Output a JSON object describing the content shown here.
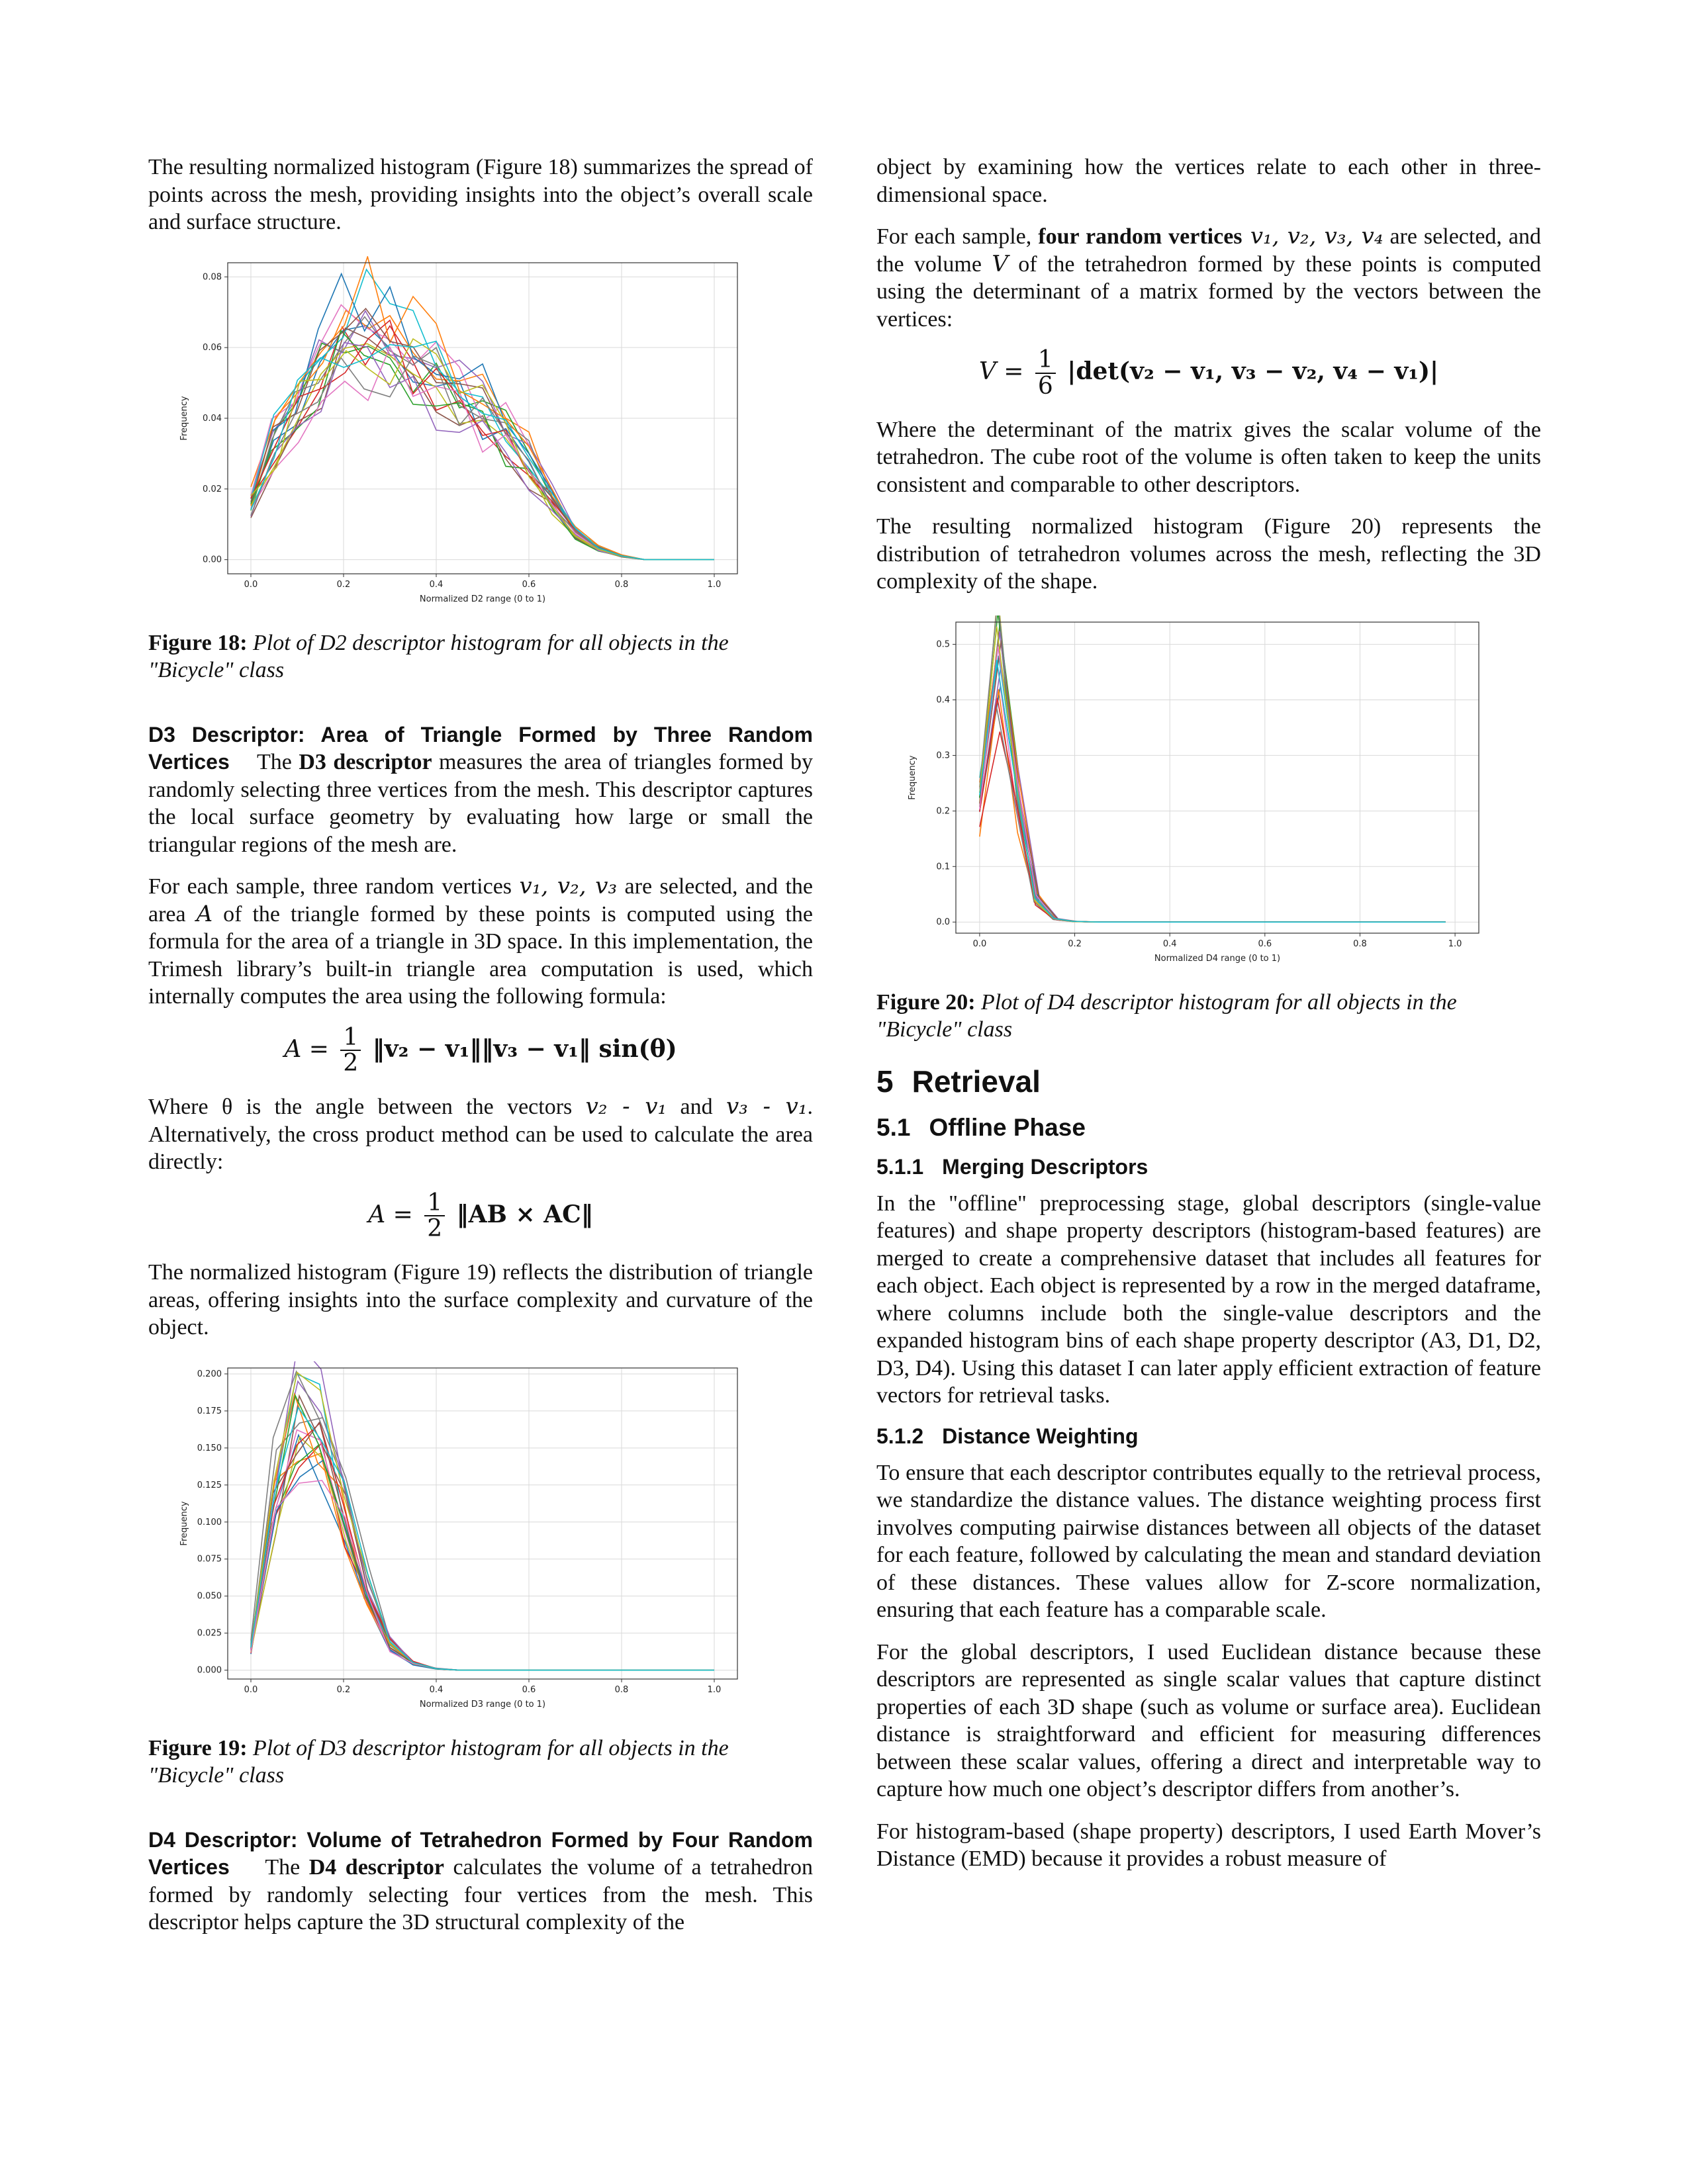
{
  "left": {
    "p_intro": "The resulting normalized histogram (Figure 18) summarizes the spread of points across the mesh, providing insights into the object’s overall scale and surface structure.",
    "fig18_label": "Figure 18:",
    "fig18_text": "Plot of D2 descriptor histogram for all objects in the \"Bicycle\" class",
    "d3_heading": "D3 Descriptor: Area of Triangle Formed by Three Random Vertices",
    "d3_p1_pre": "The ",
    "d3_p1_bold": "D3 descriptor",
    "d3_p1_post": " measures the area of triangles formed by randomly selecting three vertices from the mesh. This descriptor captures the local surface geometry by evaluating how large or small the triangular regions of the mesh are.",
    "d3_p2_a": "For each sample, three random vertices ",
    "d3_p2_vars": "v₁, v₂, v₃",
    "d3_p2_b": " are selected, and the area ",
    "d3_p2_A": "A",
    "d3_p2_c": " of the triangle formed by these points is computed using the formula for the area of a triangle in 3D space. In this implementation, the Trimesh library’s built-in triangle area computation is used, which internally computes the area using the following formula:",
    "eq1_lhs": "A =",
    "eq1_num": "1",
    "eq1_den": "2",
    "eq1_rhs": "‖v₂ − v₁‖‖v₃ − v₁‖ sin(θ)",
    "d3_p3_a": "Where θ is the angle between the vectors ",
    "d3_p3_v1": "v₂ - v₁",
    "d3_p3_b": " and ",
    "d3_p3_v2": "v₃ - v₁",
    "d3_p3_c": ". Alternatively, the cross product method can be used to calculate the area directly:",
    "eq2_lhs": "A =",
    "eq2_num": "1",
    "eq2_den": "2",
    "eq2_rhs": "‖AB × AC‖",
    "d3_p4": "The normalized histogram (Figure 19) reflects the distribution of triangle areas, offering insights into the surface complexity and curvature of the object.",
    "fig19_label": "Figure 19:",
    "fig19_text": "Plot of D3 descriptor histogram for all objects in the \"Bicycle\" class",
    "d4_heading": "D4 Descriptor: Volume of Tetrahedron Formed by Four Random Vertices",
    "d4_p1_pre": "The ",
    "d4_p1_bold": "D4 descriptor",
    "d4_p1_post": " calculates the volume of a tetrahedron formed by randomly selecting four vertices from the mesh. This descriptor helps capture the 3D structural complexity of the"
  },
  "right": {
    "p_cont": "object by examining how the vertices relate to each other in three-dimensional space.",
    "p_sample_a": "For each sample, ",
    "p_sample_bold": "four random vertices",
    "p_sample_vars": " v₁, v₂, v₃, v₄",
    "p_sample_b": " are selected, and the volume ",
    "p_sample_V": "V",
    "p_sample_c": " of the tetrahedron formed by these points is computed using the determinant of a matrix formed by the vectors between the vertices:",
    "eq3_lhs": "V =",
    "eq3_num": "1",
    "eq3_den": "6",
    "eq3_rhs": "|det(v₂ − v₁, v₃ − v₂, v₄ − v₁)|",
    "p_det": "Where the determinant of the matrix gives the scalar volume of the tetrahedron. The cube root of the volume is often taken to keep the units consistent and comparable to other descriptors.",
    "p_fig20": "The resulting normalized histogram (Figure 20) represents the distribution of tetrahedron volumes across the mesh, reflecting the 3D complexity of the shape.",
    "fig20_label": "Figure 20:",
    "fig20_text": "Plot of D4 descriptor histogram for all objects in the \"Bicycle\" class",
    "sec5_num": "5",
    "sec5_title": "Retrieval",
    "sec51_num": "5.1",
    "sec51_title": "Offline Phase",
    "sec511_num": "5.1.1",
    "sec511_title": "Merging Descriptors",
    "p_merge": "In the \"offline\" preprocessing stage, global descriptors (single-value features) and shape property descriptors (histogram-based features) are merged to create a comprehensive dataset that includes all features for each object. Each object is represented by a row in the merged dataframe, where columns include both the single-value descriptors and the expanded histogram bins of each shape property descriptor (A3, D1, D2, D3, D4). Using this dataset I can later apply efficient extraction of feature vectors for retrieval tasks.",
    "sec512_num": "5.1.2",
    "sec512_title": "Distance Weighting",
    "p_dist1": "To ensure that each descriptor contributes equally to the retrieval process, we standardize the distance values. The distance weighting process first involves computing pairwise distances between all objects of the dataset for each feature, followed by calculating the mean and standard deviation of these distances. These values allow for Z-score normalization, ensuring that each feature has a comparable scale.",
    "p_dist2": "For the global descriptors, I used Euclidean distance because these descriptors are represented as single scalar values that capture distinct properties of each 3D shape (such as volume or surface area). Euclidean distance is straightforward and efficient for measuring differences between these scalar values, offering a direct and interpretable way to capture how much one object’s descriptor differs from another’s.",
    "p_dist3": "For histogram-based (shape property) descriptors, I used Earth Mover’s Distance (EMD) because it provides a robust measure of"
  },
  "chart_data": [
    {
      "id": "fig18",
      "type": "line",
      "xlabel": "Normalized D2 range (0 to 1)",
      "ylabel": "Frequency",
      "xlim": [
        -0.05,
        1.05
      ],
      "ylim": [
        -0.004,
        0.084
      ],
      "xticks": [
        "0.0",
        "0.2",
        "0.4",
        "0.6",
        "0.8",
        "1.0"
      ],
      "yticks": [
        "0.00",
        "0.02",
        "0.04",
        "0.06",
        "0.08"
      ],
      "ytick_values": [
        0,
        0.02,
        0.04,
        0.06,
        0.08
      ],
      "grid": true,
      "x": [
        0,
        0.05,
        0.1,
        0.15,
        0.2,
        0.25,
        0.3,
        0.35,
        0.4,
        0.45,
        0.5,
        0.55,
        0.6,
        0.65,
        0.7,
        0.75,
        0.8,
        0.85,
        0.9,
        0.95,
        1.0
      ],
      "base": [
        0.016,
        0.032,
        0.045,
        0.056,
        0.063,
        0.064,
        0.061,
        0.056,
        0.052,
        0.048,
        0.043,
        0.036,
        0.027,
        0.018,
        0.008,
        0.003,
        0.001,
        0.0,
        0.0,
        0.0,
        0.0
      ],
      "series_count": 20
    },
    {
      "id": "fig19",
      "type": "line",
      "xlabel": "Normalized D3 range (0 to 1)",
      "ylabel": "Frequency",
      "xlim": [
        -0.05,
        1.05
      ],
      "ylim": [
        -0.006,
        0.204
      ],
      "xticks": [
        "0.0",
        "0.2",
        "0.4",
        "0.6",
        "0.8",
        "1.0"
      ],
      "yticks": [
        "0.000",
        "0.025",
        "0.050",
        "0.075",
        "0.100",
        "0.125",
        "0.150",
        "0.175",
        "0.200"
      ],
      "ytick_values": [
        0,
        0.025,
        0.05,
        0.075,
        0.1,
        0.125,
        0.15,
        0.175,
        0.2
      ],
      "grid": true,
      "x": [
        0,
        0.05,
        0.1,
        0.15,
        0.2,
        0.25,
        0.3,
        0.35,
        0.4,
        0.45,
        0.5,
        0.55,
        0.6,
        0.65,
        0.7,
        0.75,
        0.8,
        0.85,
        0.9,
        0.95,
        1.0
      ],
      "base": [
        0.015,
        0.12,
        0.17,
        0.155,
        0.11,
        0.055,
        0.018,
        0.005,
        0.001,
        0.0,
        0.0,
        0.0,
        0.0,
        0.0,
        0.0,
        0.0,
        0.0,
        0.0,
        0.0,
        0.0,
        0.0
      ],
      "series_count": 20
    },
    {
      "id": "fig20",
      "type": "line",
      "xlabel": "Normalized D4 range (0 to 1)",
      "ylabel": "Frequency",
      "xlim": [
        -0.05,
        1.05
      ],
      "ylim": [
        -0.02,
        0.54
      ],
      "xticks": [
        "0.0",
        "0.2",
        "0.4",
        "0.6",
        "0.8",
        "1.0"
      ],
      "yticks": [
        "0.0",
        "0.1",
        "0.2",
        "0.3",
        "0.4",
        "0.5"
      ],
      "ytick_values": [
        0,
        0.1,
        0.2,
        0.3,
        0.4,
        0.5
      ],
      "grid": true,
      "x": [
        0,
        0.04,
        0.08,
        0.12,
        0.16,
        0.2,
        0.25,
        0.3,
        0.35,
        0.4,
        0.45,
        0.5,
        0.55,
        0.6,
        0.65,
        0.7,
        0.75,
        0.8,
        0.85,
        0.9,
        0.95,
        0.98
      ],
      "base": [
        0.2,
        0.47,
        0.22,
        0.04,
        0.005,
        0.001,
        0,
        0,
        0,
        0,
        0,
        0,
        0,
        0,
        0,
        0,
        0,
        0,
        0,
        0,
        0,
        0
      ],
      "series_count": 20
    }
  ],
  "colors": [
    "#1f77b4",
    "#ff7f0e",
    "#2ca02c",
    "#d62728",
    "#9467bd",
    "#8c564b",
    "#e377c2",
    "#7f7f7f",
    "#bcbd22",
    "#17becf"
  ]
}
